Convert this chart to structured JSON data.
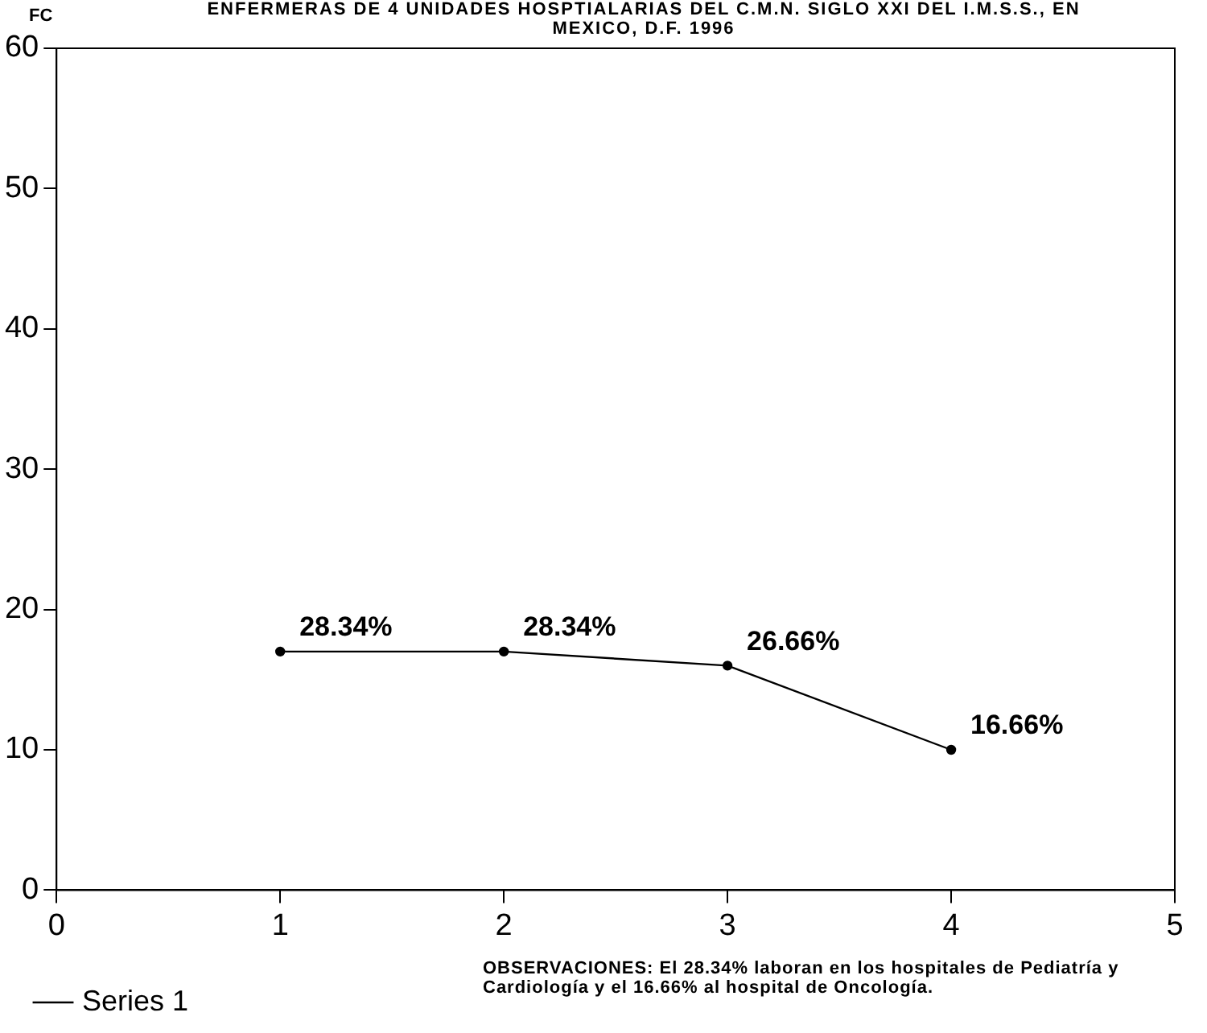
{
  "chart_data": {
    "type": "line",
    "title": "ENFERMERAS DE 4 UNIDADES HOSPTIALARIAS DEL C.M.N. SIGLO XXI DEL I.M.S.S., EN MEXICO, D.F. 1996",
    "ylabel": "FC",
    "x": [
      1,
      2,
      3,
      4
    ],
    "series": [
      {
        "name": "Series 1",
        "color": "#000000",
        "values": [
          17,
          17,
          16,
          10
        ]
      }
    ],
    "xlim": [
      0,
      5
    ],
    "xticks": [
      0,
      1,
      2,
      3,
      4,
      5
    ],
    "ylim": [
      0,
      60
    ],
    "yticks": [
      0,
      10,
      20,
      30,
      40,
      50,
      60
    ],
    "grid": false,
    "legend": "bottom left",
    "marker": "circle",
    "line_style": "solid",
    "annotations": [
      {
        "text": "28.34%",
        "x": 1,
        "y": 17
      },
      {
        "text": "28.34%",
        "x": 2,
        "y": 17
      },
      {
        "text": "26.66%",
        "x": 3,
        "y": 16
      },
      {
        "text": "16.66%",
        "x": 4,
        "y": 10
      },
      "OBSERVACIONES: El 28.34% laboran en los hospitales de Pediatría y Cardiología y el 16.66% al hospital de Oncología."
    ]
  }
}
